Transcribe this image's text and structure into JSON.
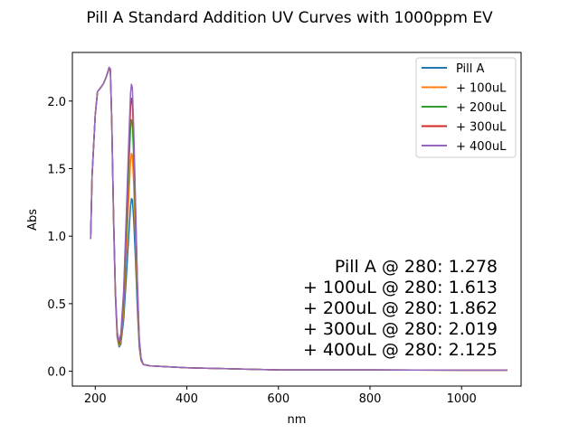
{
  "chart_data": {
    "type": "line",
    "title": "Pill A Standard Addition UV Curves with 1000ppm EV",
    "xlabel": "nm",
    "ylabel": "Abs",
    "xlim": [
      150,
      1130
    ],
    "ylim": [
      -0.11,
      2.36
    ],
    "xticks": [
      200,
      400,
      600,
      800,
      1000
    ],
    "yticks": [
      0.0,
      0.5,
      1.0,
      1.5,
      2.0
    ],
    "grid": false,
    "legend_position": "top-right",
    "series": [
      {
        "name": "Pill A",
        "color": "#1f77b4",
        "points": [
          [
            190,
            0.98
          ],
          [
            193,
            1.45
          ],
          [
            200,
            1.9
          ],
          [
            205,
            2.07
          ],
          [
            212,
            2.1
          ],
          [
            218,
            2.13
          ],
          [
            224,
            2.18
          ],
          [
            230,
            2.24
          ],
          [
            233,
            2.23
          ],
          [
            236,
            1.85
          ],
          [
            240,
            1.1
          ],
          [
            244,
            0.55
          ],
          [
            248,
            0.25
          ],
          [
            252,
            0.18
          ],
          [
            256,
            0.2
          ],
          [
            262,
            0.38
          ],
          [
            268,
            0.7
          ],
          [
            273,
            1.0
          ],
          [
            277,
            1.22
          ],
          [
            279,
            1.278
          ],
          [
            281,
            1.27
          ],
          [
            284,
            1.12
          ],
          [
            288,
            0.82
          ],
          [
            292,
            0.45
          ],
          [
            296,
            0.18
          ],
          [
            300,
            0.08
          ],
          [
            305,
            0.05
          ],
          [
            320,
            0.04
          ],
          [
            400,
            0.025
          ],
          [
            600,
            0.01
          ],
          [
            800,
            0.01
          ],
          [
            1000,
            0.008
          ],
          [
            1100,
            0.008
          ]
        ]
      },
      {
        "name": "+ 100uL",
        "color": "#ff7f0e",
        "points": [
          [
            190,
            0.98
          ],
          [
            193,
            1.45
          ],
          [
            200,
            1.9
          ],
          [
            205,
            2.07
          ],
          [
            212,
            2.1
          ],
          [
            218,
            2.13
          ],
          [
            224,
            2.18
          ],
          [
            230,
            2.24
          ],
          [
            233,
            2.23
          ],
          [
            236,
            1.85
          ],
          [
            240,
            1.1
          ],
          [
            244,
            0.55
          ],
          [
            248,
            0.25
          ],
          [
            252,
            0.19
          ],
          [
            256,
            0.22
          ],
          [
            262,
            0.45
          ],
          [
            268,
            0.88
          ],
          [
            273,
            1.28
          ],
          [
            277,
            1.55
          ],
          [
            279,
            1.613
          ],
          [
            281,
            1.6
          ],
          [
            284,
            1.38
          ],
          [
            288,
            0.98
          ],
          [
            292,
            0.52
          ],
          [
            296,
            0.2
          ],
          [
            300,
            0.08
          ],
          [
            305,
            0.05
          ],
          [
            320,
            0.04
          ],
          [
            400,
            0.025
          ],
          [
            600,
            0.01
          ],
          [
            800,
            0.01
          ],
          [
            1000,
            0.008
          ],
          [
            1100,
            0.008
          ]
        ]
      },
      {
        "name": "+ 200uL",
        "color": "#2ca02c",
        "points": [
          [
            190,
            0.98
          ],
          [
            193,
            1.45
          ],
          [
            200,
            1.9
          ],
          [
            205,
            2.07
          ],
          [
            212,
            2.1
          ],
          [
            218,
            2.13
          ],
          [
            224,
            2.18
          ],
          [
            230,
            2.24
          ],
          [
            233,
            2.23
          ],
          [
            236,
            1.86
          ],
          [
            240,
            1.12
          ],
          [
            244,
            0.57
          ],
          [
            248,
            0.27
          ],
          [
            252,
            0.2
          ],
          [
            256,
            0.24
          ],
          [
            262,
            0.52
          ],
          [
            268,
            1.02
          ],
          [
            273,
            1.5
          ],
          [
            277,
            1.8
          ],
          [
            279,
            1.862
          ],
          [
            281,
            1.84
          ],
          [
            284,
            1.58
          ],
          [
            288,
            1.1
          ],
          [
            292,
            0.58
          ],
          [
            296,
            0.22
          ],
          [
            300,
            0.09
          ],
          [
            305,
            0.05
          ],
          [
            320,
            0.04
          ],
          [
            400,
            0.025
          ],
          [
            600,
            0.01
          ],
          [
            800,
            0.01
          ],
          [
            1000,
            0.008
          ],
          [
            1100,
            0.008
          ]
        ]
      },
      {
        "name": "+ 300uL",
        "color": "#d62728",
        "points": [
          [
            190,
            0.98
          ],
          [
            193,
            1.45
          ],
          [
            200,
            1.9
          ],
          [
            205,
            2.07
          ],
          [
            212,
            2.1
          ],
          [
            218,
            2.13
          ],
          [
            224,
            2.18
          ],
          [
            230,
            2.24
          ],
          [
            233,
            2.23
          ],
          [
            236,
            1.86
          ],
          [
            240,
            1.13
          ],
          [
            244,
            0.58
          ],
          [
            248,
            0.28
          ],
          [
            252,
            0.21
          ],
          [
            256,
            0.26
          ],
          [
            262,
            0.57
          ],
          [
            268,
            1.12
          ],
          [
            273,
            1.62
          ],
          [
            277,
            1.95
          ],
          [
            279,
            2.019
          ],
          [
            281,
            2.0
          ],
          [
            284,
            1.72
          ],
          [
            288,
            1.2
          ],
          [
            292,
            0.63
          ],
          [
            296,
            0.24
          ],
          [
            300,
            0.09
          ],
          [
            305,
            0.05
          ],
          [
            320,
            0.04
          ],
          [
            400,
            0.025
          ],
          [
            600,
            0.01
          ],
          [
            800,
            0.01
          ],
          [
            1000,
            0.008
          ],
          [
            1100,
            0.008
          ]
        ]
      },
      {
        "name": "+ 400uL",
        "color": "#9467bd",
        "points": [
          [
            190,
            0.98
          ],
          [
            193,
            1.45
          ],
          [
            200,
            1.9
          ],
          [
            205,
            2.07
          ],
          [
            212,
            2.1
          ],
          [
            218,
            2.13
          ],
          [
            224,
            2.18
          ],
          [
            230,
            2.25
          ],
          [
            233,
            2.24
          ],
          [
            236,
            1.87
          ],
          [
            240,
            1.14
          ],
          [
            244,
            0.59
          ],
          [
            248,
            0.29
          ],
          [
            252,
            0.22
          ],
          [
            256,
            0.28
          ],
          [
            262,
            0.6
          ],
          [
            268,
            1.18
          ],
          [
            273,
            1.7
          ],
          [
            277,
            2.06
          ],
          [
            279,
            2.125
          ],
          [
            281,
            2.1
          ],
          [
            284,
            1.8
          ],
          [
            288,
            1.25
          ],
          [
            292,
            0.66
          ],
          [
            296,
            0.25
          ],
          [
            300,
            0.1
          ],
          [
            305,
            0.05
          ],
          [
            320,
            0.04
          ],
          [
            400,
            0.025
          ],
          [
            600,
            0.01
          ],
          [
            800,
            0.01
          ],
          [
            1000,
            0.008
          ],
          [
            1100,
            0.008
          ]
        ]
      }
    ],
    "annotations": [
      "Pill A @ 280: 1.278",
      "+ 100uL @ 280: 1.613",
      "+ 200uL @ 280: 1.862",
      "+ 300uL @ 280: 2.019",
      "+ 400uL @ 280: 2.125"
    ]
  }
}
